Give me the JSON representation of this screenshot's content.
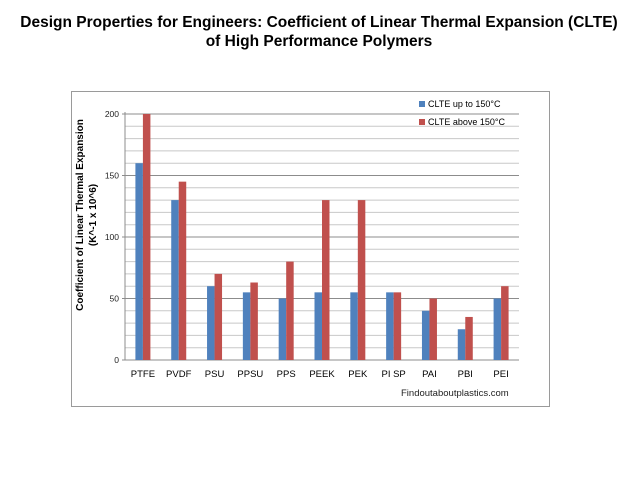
{
  "header": {
    "line1": "Design Properties for Engineers: Coefficient of Linear Thermal Expansion (CLTE)",
    "line2": "of High Performance Polymers"
  },
  "source": "Findoutaboutplastics.com",
  "chart_data": {
    "type": "bar",
    "title": "",
    "ylabel_line1": "Coefficient of Linear Thermal Expansion",
    "ylabel_line2": "(K^-1 x 10^6)",
    "xlabel": "",
    "categories": [
      "PTFE",
      "PVDF",
      "PSU",
      "PPSU",
      "PPS",
      "PEEK",
      "PEK",
      "PI SP",
      "PAI",
      "PBI",
      "PEI"
    ],
    "series": [
      {
        "name": "CLTE up to 150°C",
        "color": "#4f81bd",
        "values": [
          160,
          130,
          60,
          55,
          50,
          55,
          55,
          55,
          40,
          25,
          50
        ]
      },
      {
        "name": "CLTE above 150°C",
        "color": "#c0504d",
        "values": [
          200,
          145,
          70,
          63,
          80,
          130,
          130,
          55,
          50,
          35,
          60
        ]
      }
    ],
    "ylim": [
      0,
      200
    ],
    "yticks": [
      0,
      50,
      100,
      150,
      200
    ],
    "grid": true,
    "legend_position": "top-right"
  }
}
